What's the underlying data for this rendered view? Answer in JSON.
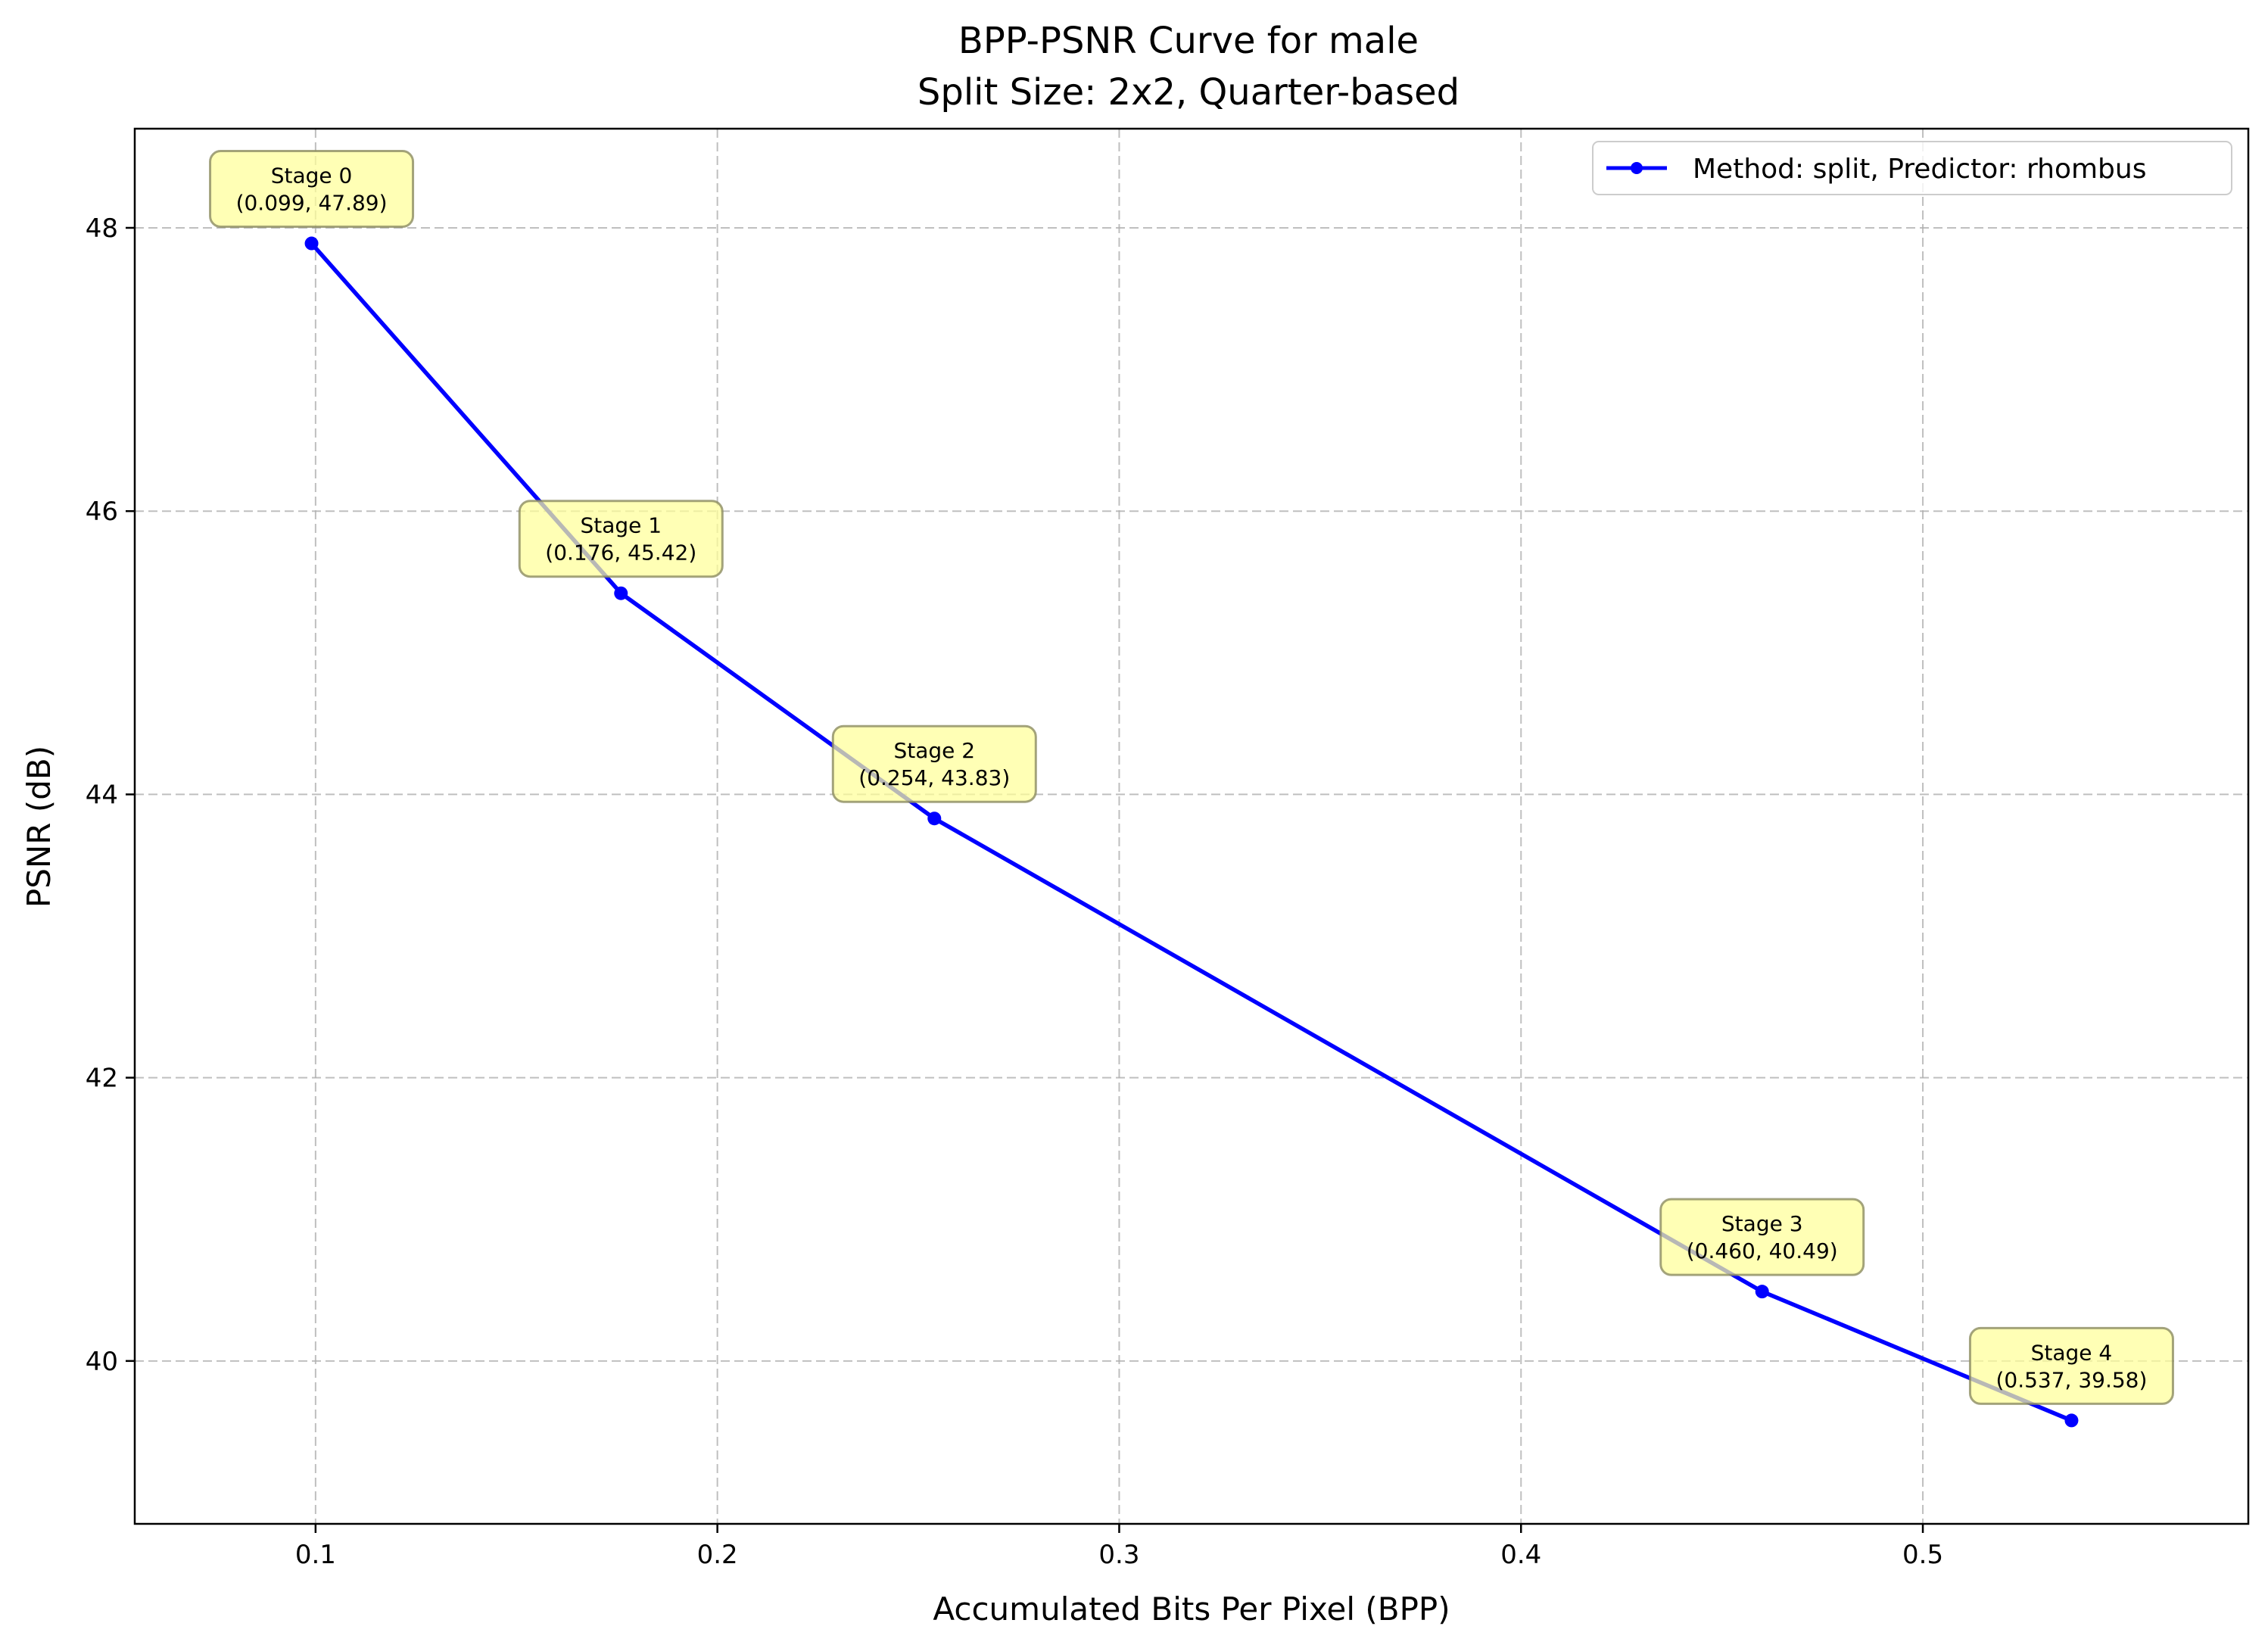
{
  "chart_data": {
    "type": "line",
    "title": "BPP-PSNR Curve for male",
    "subtitle": "Split Size: 2x2, Quarter-based",
    "xlabel": "Accumulated Bits Per Pixel (BPP)",
    "ylabel": "PSNR (dB)",
    "xlim": [
      0.055,
      0.581
    ],
    "ylim": [
      38.85,
      48.7
    ],
    "x_ticks": [
      0.1,
      0.2,
      0.3,
      0.4,
      0.5
    ],
    "x_tick_labels": [
      "0.1",
      "0.2",
      "0.3",
      "0.4",
      "0.5"
    ],
    "y_ticks": [
      40,
      42,
      44,
      46,
      48
    ],
    "y_tick_labels": [
      "40",
      "42",
      "44",
      "46",
      "48"
    ],
    "grid": true,
    "legend_position": "top-right",
    "series": [
      {
        "name": "Method: split, Predictor: rhombus",
        "color": "#0000ff",
        "x": [
          0.099,
          0.176,
          0.254,
          0.46,
          0.537
        ],
        "y": [
          47.89,
          45.42,
          43.83,
          40.49,
          39.58
        ]
      }
    ],
    "annotations": [
      {
        "stage": "Stage 0",
        "coords": "(0.099, 47.89)",
        "x": 0.099,
        "y": 47.89
      },
      {
        "stage": "Stage 1",
        "coords": "(0.176, 45.42)",
        "x": 0.176,
        "y": 45.42
      },
      {
        "stage": "Stage 2",
        "coords": "(0.254, 43.83)",
        "x": 0.254,
        "y": 43.83
      },
      {
        "stage": "Stage 3",
        "coords": "(0.460, 40.49)",
        "x": 0.46,
        "y": 40.49
      },
      {
        "stage": "Stage 4",
        "coords": "(0.537, 39.58)",
        "x": 0.537,
        "y": 39.58
      }
    ],
    "annotation_color": "#ffff99"
  }
}
